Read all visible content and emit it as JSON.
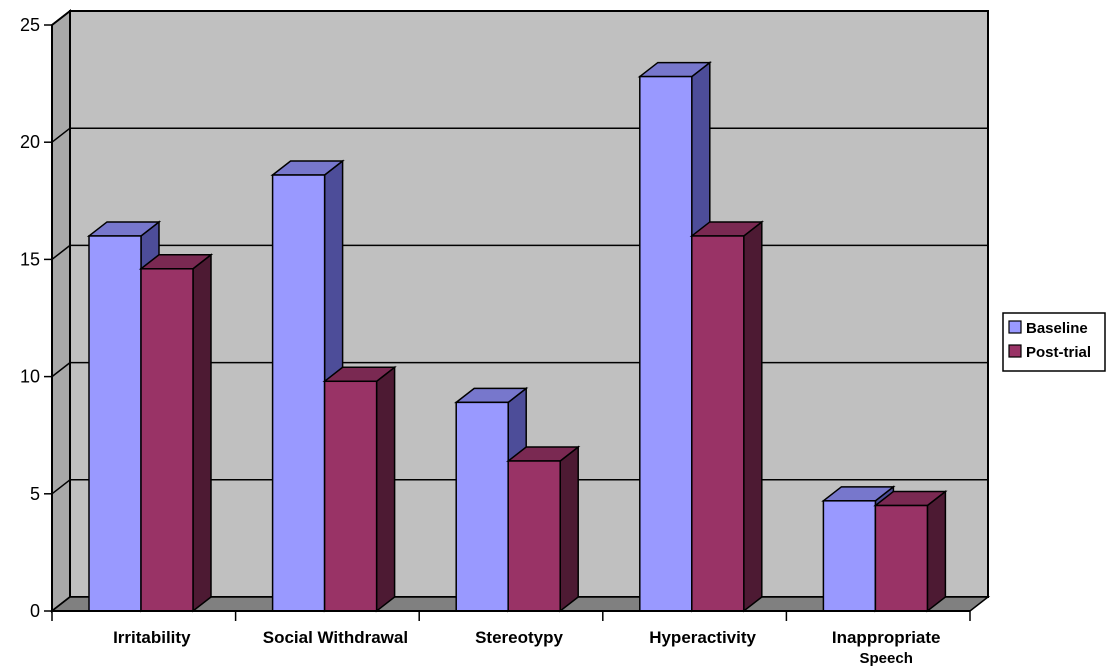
{
  "chart_data": {
    "type": "bar",
    "categories": [
      "Irritability",
      "Social Withdrawal",
      "Stereotypy",
      "Hyperactivity",
      "Inappropriate Speech"
    ],
    "series": [
      {
        "name": "Baseline",
        "values": [
          16.0,
          18.6,
          8.9,
          22.8,
          4.7
        ]
      },
      {
        "name": "Post-trial",
        "values": [
          14.6,
          9.8,
          6.4,
          16.0,
          4.5
        ]
      }
    ],
    "ylim": [
      0,
      25
    ],
    "yticks": [
      0,
      5,
      10,
      15,
      20,
      25
    ],
    "grid": true,
    "style": "3d",
    "legend_position": "right",
    "colors": {
      "Baseline": {
        "front": "#9999ff",
        "side": "#4d4d99",
        "top": "#7777cc"
      },
      "Post-trial": {
        "front": "#993366",
        "side": "#4d1a33",
        "top": "#7a2952"
      },
      "wall": "#c0c0c0",
      "floor": "#808080",
      "grid": "#000000"
    }
  }
}
